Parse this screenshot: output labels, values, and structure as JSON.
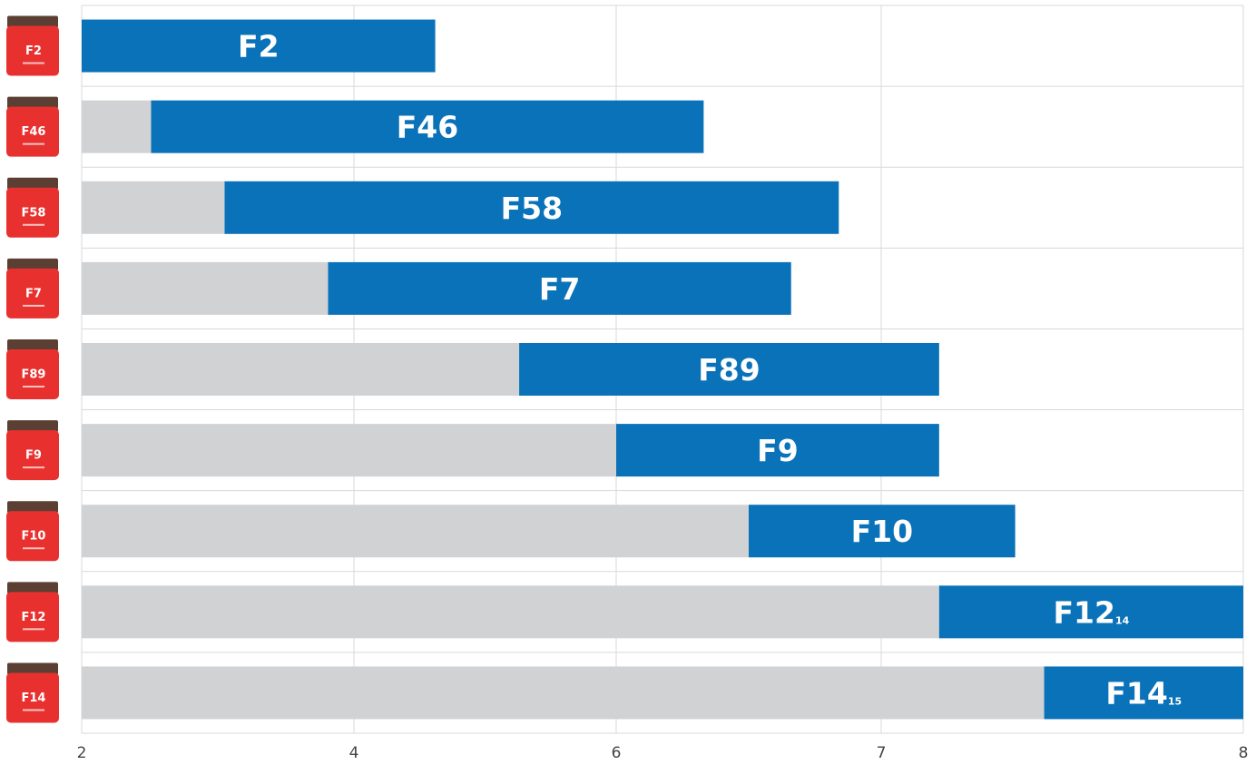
{
  "chart_data": {
    "type": "floating-bar",
    "orientation": "horizontal",
    "categories": [
      "F2",
      "F46",
      "F58",
      "F7",
      "F89",
      "F9",
      "F10",
      "F12",
      "F14"
    ],
    "subscripts": [
      null,
      null,
      null,
      null,
      null,
      null,
      null,
      "14",
      "15"
    ],
    "starts": [
      2,
      2.51,
      3.05,
      3.81,
      5.26,
      6.0,
      6.5,
      7.16,
      7.45
    ],
    "ends": [
      4.62,
      6.33,
      6.84,
      6.66,
      7.16,
      7.16,
      7.37,
      8,
      8
    ],
    "color": "#0a72b8",
    "base_color": "#d1d2d4",
    "xlim": [
      2,
      8
    ],
    "xticks": [
      2,
      4,
      6,
      7,
      8
    ],
    "grid": true
  }
}
